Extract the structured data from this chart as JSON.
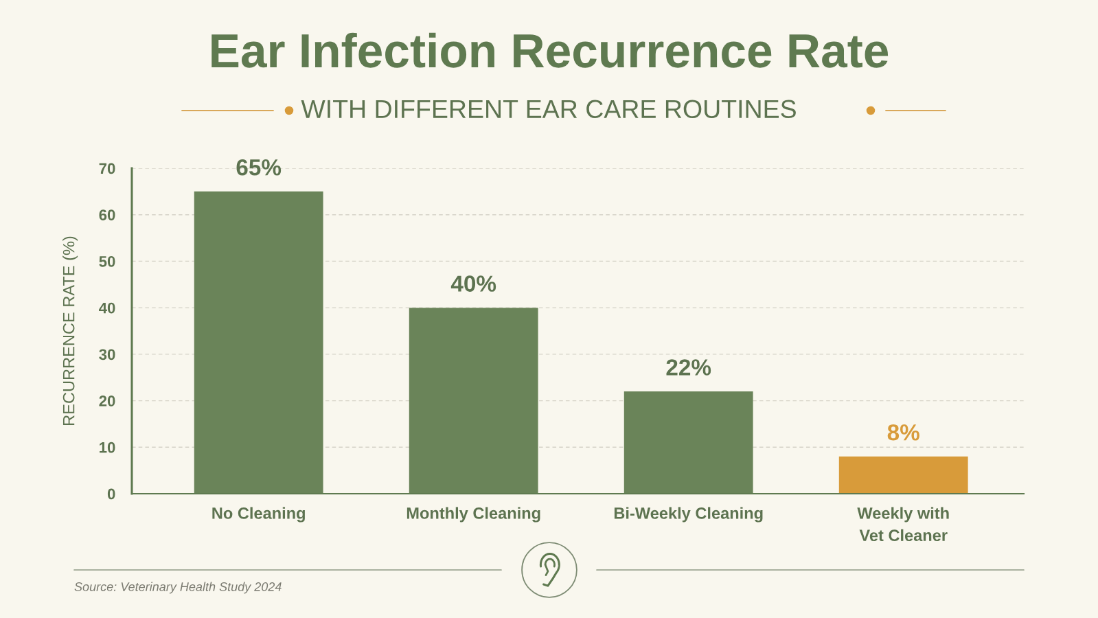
{
  "chart_data": {
    "type": "bar",
    "title": "Ear Infection Recurrence Rate",
    "subtitle": "WITH DIFFERENT EAR CARE ROUTINES",
    "ylabel": "RECURRENCE RATE (%)",
    "categories": [
      "No Cleaning",
      "Monthly Cleaning",
      "Bi-Weekly Cleaning",
      "Weekly with\nVet Cleaner"
    ],
    "values": [
      65,
      40,
      22,
      8
    ],
    "colors": [
      "#6a8459",
      "#6a8459",
      "#6a8459",
      "#d89b3a"
    ],
    "value_labels": [
      "65%",
      "40%",
      "22%",
      "8%"
    ],
    "ylim": [
      0,
      70
    ],
    "yticks": [
      0,
      10,
      20,
      30,
      40,
      50,
      60,
      70
    ],
    "grid": "y",
    "legend": false,
    "annotations": [
      "Source: Veterinary Health Study 2024"
    ]
  }
}
